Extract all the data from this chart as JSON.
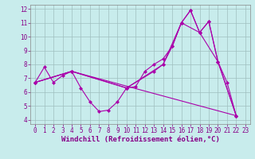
{
  "xlabel": "Windchill (Refroidissement éolien,°C)",
  "background_color": "#c8ecec",
  "line_color": "#aa00aa",
  "xlim": [
    -0.5,
    23.5
  ],
  "ylim": [
    3.7,
    12.3
  ],
  "yticks": [
    4,
    5,
    6,
    7,
    8,
    9,
    10,
    11,
    12
  ],
  "xticks": [
    0,
    1,
    2,
    3,
    4,
    5,
    6,
    7,
    8,
    9,
    10,
    11,
    12,
    13,
    14,
    15,
    16,
    17,
    18,
    19,
    20,
    21,
    22,
    23
  ],
  "line1_x": [
    0,
    1,
    2,
    3,
    4,
    5,
    6,
    7,
    8,
    9,
    10,
    11,
    12,
    13,
    14,
    15,
    16,
    17,
    18,
    19,
    20,
    21,
    22
  ],
  "line1_y": [
    6.7,
    7.8,
    6.7,
    7.2,
    7.5,
    6.3,
    5.3,
    4.6,
    4.7,
    5.3,
    6.3,
    6.4,
    7.5,
    8.0,
    8.4,
    9.3,
    11.0,
    11.9,
    10.3,
    11.1,
    8.2,
    6.7,
    4.3
  ],
  "line2_x": [
    0,
    4,
    10,
    14,
    16,
    17,
    18,
    19,
    20,
    22
  ],
  "line2_y": [
    6.7,
    7.5,
    6.3,
    8.0,
    11.0,
    11.9,
    10.3,
    11.1,
    8.2,
    4.3
  ],
  "line3_x": [
    0,
    4,
    10,
    13,
    14,
    15,
    16,
    18,
    20,
    22
  ],
  "line3_y": [
    6.7,
    7.5,
    6.3,
    7.5,
    8.0,
    9.3,
    11.0,
    10.3,
    8.2,
    4.3
  ],
  "line4_x": [
    0,
    4,
    22
  ],
  "line4_y": [
    6.7,
    7.5,
    4.3
  ],
  "grid_color": "#9fbfbf",
  "tick_fontsize": 5.5,
  "label_fontsize": 6.5
}
